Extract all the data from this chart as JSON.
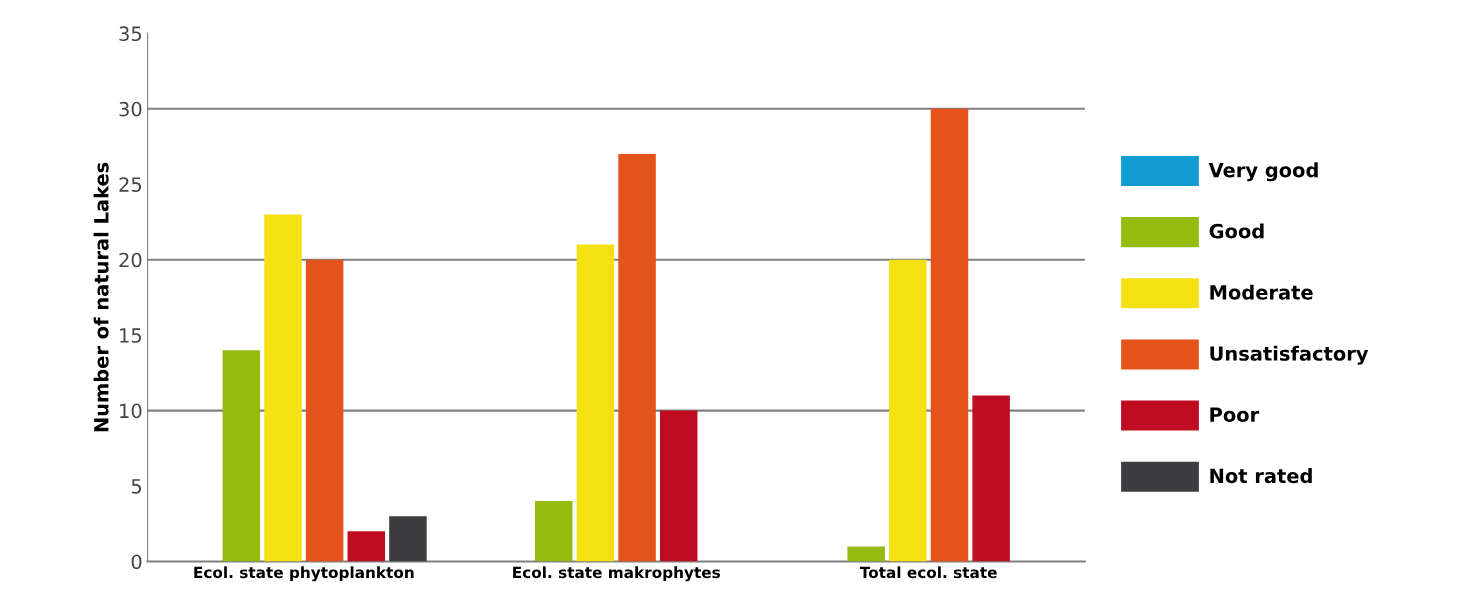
{
  "chart_data": {
    "type": "bar",
    "ylabel": "Number of natural Lakes",
    "categories": [
      "Ecol. state phytoplankton",
      "Ecol. state makrophytes",
      "Total ecol. state"
    ],
    "series": [
      {
        "name": "Very good",
        "color": "#109cd2",
        "values": [
          0,
          0,
          0
        ]
      },
      {
        "name": "Good",
        "color": "#95bb0f",
        "values": [
          14,
          4,
          1
        ]
      },
      {
        "name": "Moderate",
        "color": "#f5e014",
        "values": [
          23,
          21,
          20
        ]
      },
      {
        "name": "Unsatisfactory",
        "color": "#e5531c",
        "values": [
          20,
          27,
          30
        ]
      },
      {
        "name": "Poor",
        "color": "#bf0c22",
        "values": [
          2,
          10,
          11
        ]
      },
      {
        "name": "Not rated",
        "color": "#3c3c3e",
        "values": [
          3,
          0,
          0
        ]
      }
    ],
    "ylim": [
      0,
      35
    ],
    "yticks": [
      0,
      5,
      10,
      15,
      20,
      25,
      30,
      35
    ],
    "ref_lines": [
      {
        "axis": "y",
        "value": 10,
        "color": "#808080"
      },
      {
        "axis": "y",
        "value": 20,
        "color": "#808080"
      },
      {
        "axis": "y",
        "value": 30,
        "color": "#808080"
      }
    ],
    "legend": "right"
  }
}
